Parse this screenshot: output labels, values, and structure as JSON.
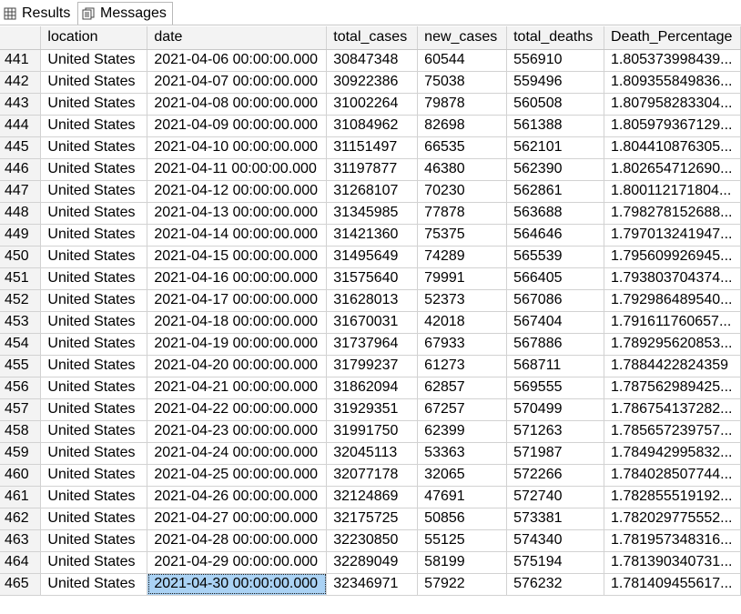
{
  "tabs": [
    {
      "label": "Results"
    },
    {
      "label": "Messages"
    }
  ],
  "grid": {
    "columns": [
      "",
      "location",
      "date",
      "total_cases",
      "new_cases",
      "total_deaths",
      "Death_Percentage"
    ],
    "rows": [
      [
        "441",
        "United States",
        "2021-04-06 00:00:00.000",
        "30847348",
        "60544",
        "556910",
        "1.805373998439..."
      ],
      [
        "442",
        "United States",
        "2021-04-07 00:00:00.000",
        "30922386",
        "75038",
        "559496",
        "1.809355849836..."
      ],
      [
        "443",
        "United States",
        "2021-04-08 00:00:00.000",
        "31002264",
        "79878",
        "560508",
        "1.807958283304..."
      ],
      [
        "444",
        "United States",
        "2021-04-09 00:00:00.000",
        "31084962",
        "82698",
        "561388",
        "1.805979367129..."
      ],
      [
        "445",
        "United States",
        "2021-04-10 00:00:00.000",
        "31151497",
        "66535",
        "562101",
        "1.804410876305..."
      ],
      [
        "446",
        "United States",
        "2021-04-11 00:00:00.000",
        "31197877",
        "46380",
        "562390",
        "1.802654712690..."
      ],
      [
        "447",
        "United States",
        "2021-04-12 00:00:00.000",
        "31268107",
        "70230",
        "562861",
        "1.800112171804..."
      ],
      [
        "448",
        "United States",
        "2021-04-13 00:00:00.000",
        "31345985",
        "77878",
        "563688",
        "1.798278152688..."
      ],
      [
        "449",
        "United States",
        "2021-04-14 00:00:00.000",
        "31421360",
        "75375",
        "564646",
        "1.797013241947..."
      ],
      [
        "450",
        "United States",
        "2021-04-15 00:00:00.000",
        "31495649",
        "74289",
        "565539",
        "1.795609926945..."
      ],
      [
        "451",
        "United States",
        "2021-04-16 00:00:00.000",
        "31575640",
        "79991",
        "566405",
        "1.793803704374..."
      ],
      [
        "452",
        "United States",
        "2021-04-17 00:00:00.000",
        "31628013",
        "52373",
        "567086",
        "1.792986489540..."
      ],
      [
        "453",
        "United States",
        "2021-04-18 00:00:00.000",
        "31670031",
        "42018",
        "567404",
        "1.791611760657..."
      ],
      [
        "454",
        "United States",
        "2021-04-19 00:00:00.000",
        "31737964",
        "67933",
        "567886",
        "1.789295620853..."
      ],
      [
        "455",
        "United States",
        "2021-04-20 00:00:00.000",
        "31799237",
        "61273",
        "568711",
        "1.7884422824359"
      ],
      [
        "456",
        "United States",
        "2021-04-21 00:00:00.000",
        "31862094",
        "62857",
        "569555",
        "1.787562989425..."
      ],
      [
        "457",
        "United States",
        "2021-04-22 00:00:00.000",
        "31929351",
        "67257",
        "570499",
        "1.786754137282..."
      ],
      [
        "458",
        "United States",
        "2021-04-23 00:00:00.000",
        "31991750",
        "62399",
        "571263",
        "1.785657239757..."
      ],
      [
        "459",
        "United States",
        "2021-04-24 00:00:00.000",
        "32045113",
        "53363",
        "571987",
        "1.784942995832..."
      ],
      [
        "460",
        "United States",
        "2021-04-25 00:00:00.000",
        "32077178",
        "32065",
        "572266",
        "1.784028507744..."
      ],
      [
        "461",
        "United States",
        "2021-04-26 00:00:00.000",
        "32124869",
        "47691",
        "572740",
        "1.782855519192..."
      ],
      [
        "462",
        "United States",
        "2021-04-27 00:00:00.000",
        "32175725",
        "50856",
        "573381",
        "1.782029775552..."
      ],
      [
        "463",
        "United States",
        "2021-04-28 00:00:00.000",
        "32230850",
        "55125",
        "574340",
        "1.781957348316..."
      ],
      [
        "464",
        "United States",
        "2021-04-29 00:00:00.000",
        "32289049",
        "58199",
        "575194",
        "1.781390340731..."
      ],
      [
        "465",
        "United States",
        "2021-04-30 00:00:00.000",
        "32346971",
        "57922",
        "576232",
        "1.781409455617..."
      ]
    ],
    "selected_row": 24,
    "selected_col": 2
  },
  "icons": {
    "results": "grid-icon",
    "messages": "messages-icon"
  }
}
